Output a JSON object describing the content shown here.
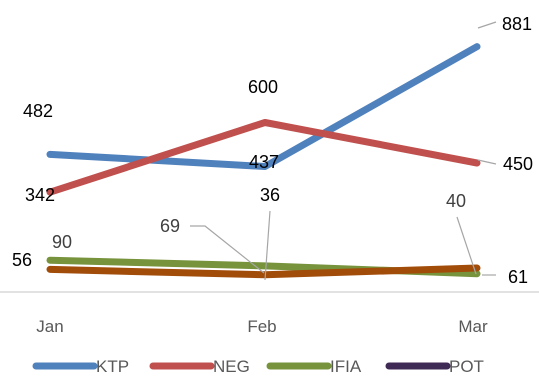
{
  "chart_data": {
    "type": "line",
    "categories": [
      "Jan",
      "Feb",
      "Mar"
    ],
    "series": [
      {
        "name": "KTP",
        "color": "#4f81bd",
        "values": [
          482,
          437,
          881
        ]
      },
      {
        "name": "NEG",
        "color": "#c0504d",
        "values": [
          342,
          600,
          450
        ]
      },
      {
        "name": "IFIA",
        "color": "#77933c",
        "values": [
          90,
          69,
          40
        ]
      },
      {
        "name": "POT",
        "color": "#3f2a55",
        "values": [
          56,
          36,
          61
        ]
      }
    ],
    "overlay_series": {
      "name": "POT",
      "color": "#a24c0a"
    },
    "data_labels": [
      {
        "series": 0,
        "index": 0,
        "text": "482"
      },
      {
        "series": 0,
        "index": 1,
        "text": "437"
      },
      {
        "series": 0,
        "index": 2,
        "text": "881"
      },
      {
        "series": 1,
        "index": 0,
        "text": "342"
      },
      {
        "series": 1,
        "index": 1,
        "text": "600"
      },
      {
        "series": 1,
        "index": 2,
        "text": "450"
      },
      {
        "series": 2,
        "index": 0,
        "text": "90"
      },
      {
        "series": 2,
        "index": 1,
        "text": "69"
      },
      {
        "series": 2,
        "index": 2,
        "text": "40"
      },
      {
        "series": 3,
        "index": 0,
        "text": "56"
      },
      {
        "series": 3,
        "index": 1,
        "text": "36"
      },
      {
        "series": 3,
        "index": 2,
        "text": "61"
      }
    ],
    "ylim": [
      0,
      1000
    ],
    "grid": false,
    "legend_position": "bottom"
  }
}
